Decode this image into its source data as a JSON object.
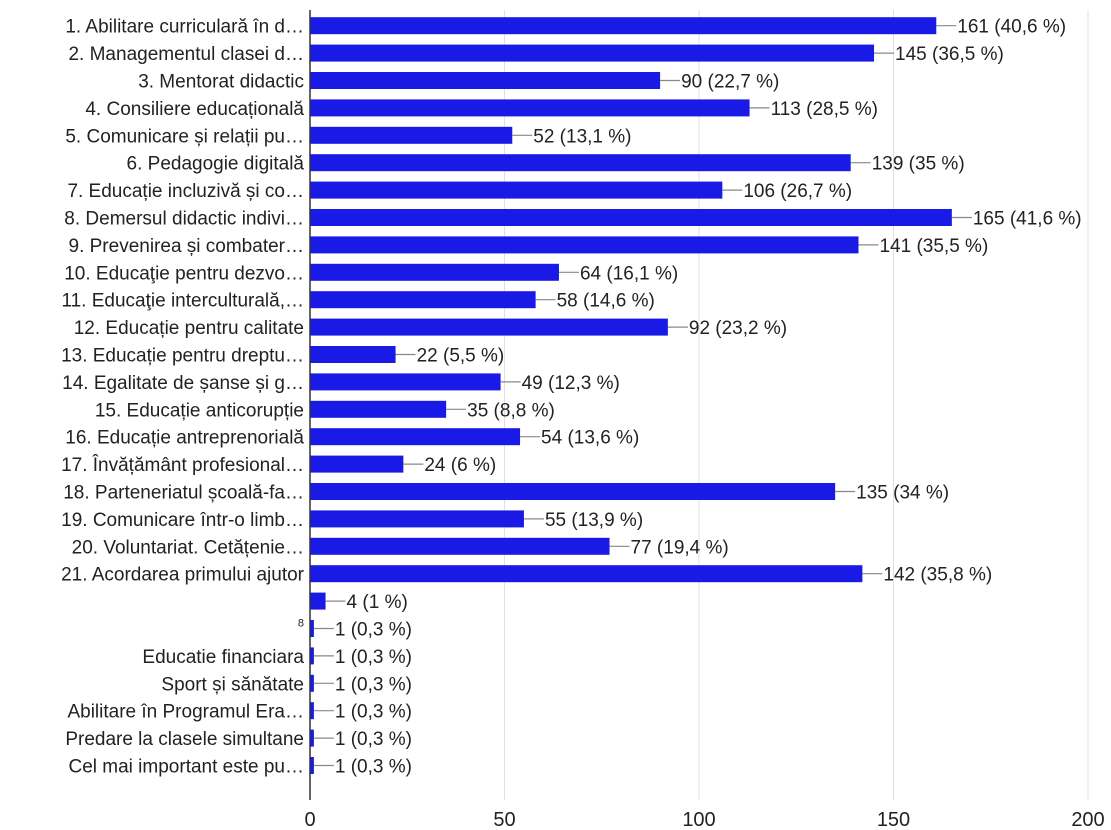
{
  "chart_data": {
    "type": "bar",
    "orientation": "horizontal",
    "categories": [
      "1. Abilitare curriculară în d…",
      "2. Managementul clasei d…",
      "3. Mentorat didactic",
      "4. Consiliere educațională",
      "5. Comunicare și relații pu…",
      "6. Pedagogie digitală",
      "7. Educație incluzivă și co…",
      "8. Demersul didactic indivi…",
      "9. Prevenirea și combater…",
      "10. Educaţie pentru dezvo…",
      "11. Educaţie interculturală,…",
      "12. Educație pentru calitate",
      "13. Educație pentru dreptu…",
      "14. Egalitate de șanse și g…",
      "15. Educație anticorupție",
      "16. Educație antreprenorială",
      "17. Învățământ profesional…",
      "18. Parteneriatul școală-fa…",
      "19. Comunicare într-o limb…",
      "20. Voluntariat. Cetățenie…",
      "21. Acordarea primului ajutor",
      "",
      "8",
      "Educatie financiara",
      "Sport și sănătate",
      "Abilitare în Programul Era…",
      "Predare la clasele simultane",
      "Cel mai important este pu…"
    ],
    "values": [
      161,
      145,
      90,
      113,
      52,
      139,
      106,
      165,
      141,
      64,
      58,
      92,
      22,
      49,
      35,
      54,
      24,
      135,
      55,
      77,
      142,
      4,
      1,
      1,
      1,
      1,
      1,
      1
    ],
    "data_labels": [
      "161 (40,6 %)",
      "145 (36,5 %)",
      "90 (22,7 %)",
      "113 (28,5 %)",
      "52 (13,1 %)",
      "139 (35 %)",
      "106 (26,7 %)",
      "165 (41,6 %)",
      "141 (35,5 %)",
      "64 (16,1 %)",
      "58 (14,6 %)",
      "92 (23,2 %)",
      "22 (5,5 %)",
      "49 (12,3 %)",
      "35 (8,8 %)",
      "54 (13,6 %)",
      "24 (6 %)",
      "135 (34 %)",
      "55 (13,9 %)",
      "77 (19,4 %)",
      "142 (35,8 %)",
      "4 (1 %)",
      "1 (0,3 %)",
      "1 (0,3 %)",
      "1 (0,3 %)",
      "1 (0,3 %)",
      "1 (0,3 %)",
      "1 (0,3 %)"
    ],
    "xlim": [
      0,
      200
    ],
    "xticks": [
      0,
      50,
      100,
      150,
      200
    ],
    "title": "",
    "xlabel": "",
    "ylabel": "",
    "grid": true,
    "legend": "none",
    "colors": {
      "bar": "#1a1ae6",
      "grid": "#e0e0e0",
      "axis": "#333333",
      "leader": "#888888",
      "text": "#222222"
    }
  }
}
